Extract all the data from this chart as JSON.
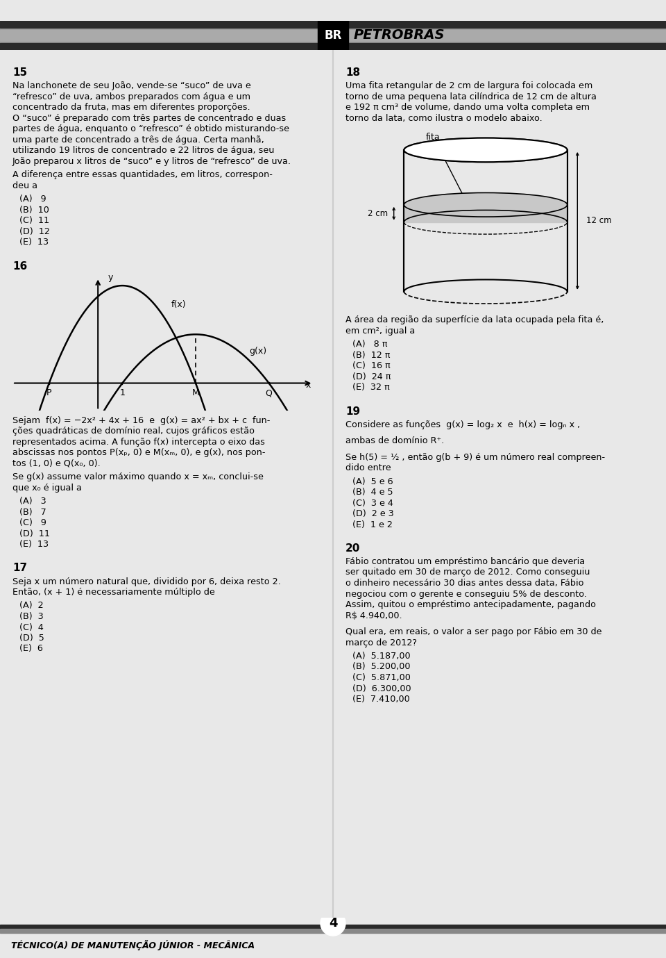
{
  "page_bg": "#e8e8e8",
  "content_bg": "#ffffff",
  "header_dark": "#2a2a2a",
  "header_mid": "#888888",
  "header_light": "#aaaaaa",
  "footer_text": "TÉCNICO(A) DE MANUTENÇÃO JÚNIOR - MECÂNICA",
  "footer_page": "4",
  "q15_title": "15",
  "q15_body": "Na lanchonete de seu João, vende-se “suco” de uva e\n“refresco” de uva, ambos preparados com água e um\nconcentrado da fruta, mas em diferentes proporções.\nO “suco” é preparado com três partes de concentrado e duas\npartes de água, enquanto o “refresco” é obtido misturando-se\numa parte de concentrado a três de água. Certa manhã,\nutilizando 19 litros de concentrado e 22 litros de água, seu\nJoão preparou x litros de “suco” e y litros de “refresco” de uva.",
  "q15_q": "A diferença entre essas quantidades, em litros, correspon-\ndeu a",
  "q15_opts": [
    "(A)   9",
    "(B)  10",
    "(C)  11",
    "(D)  12",
    "(E)  13"
  ],
  "q16_title": "16",
  "q16_sejam": "Sejam  f(x) = −2x² + 4x + 16  e  g(x) = ax² + bx + c  fun-\nções quadráticas de domínio real, cujos gráficos estão\nrepresentados acima. A função f(x) intercepta o eixo das\nabscissas nos pontos P(xₚ, 0) e M(xₘ, 0), e g(x), nos pon-\ntos (1, 0) e Q(x₀, 0).",
  "q16_q": "Se g(x) assume valor máximo quando x = xₘ, conclui-se\nque x₀ é igual a",
  "q16_opts": [
    "(A)   3",
    "(B)   7",
    "(C)   9",
    "(D)  11",
    "(E)  13"
  ],
  "q17_title": "17",
  "q17_body": "Seja x um número natural que, dividido por 6, deixa resto 2.\nEntão, (x + 1) é necessariamente múltiplo de",
  "q17_opts": [
    "(A)  2",
    "(B)  3",
    "(C)  4",
    "(D)  5",
    "(E)  6"
  ],
  "q18_title": "18",
  "q18_body": "Uma fita retangular de 2 cm de largura foi colocada em\ntorno de uma pequena lata cilíndrica de 12 cm de altura\ne 192 π cm³ de volume, dando uma volta completa em\ntorno da lata, como ilustra o modelo abaixo.",
  "q18_q": "A área da região da superfície da lata ocupada pela fita é,\nem cm², igual a",
  "q18_opts": [
    "(A)   8 π",
    "(B)  12 π",
    "(C)  16 π",
    "(D)  24 π",
    "(E)  32 π"
  ],
  "q19_title": "19",
  "q19_body1": "Considere as funções  g(x) = log₂ x  e  h(x) = logₙ x ,",
  "q19_body2": "ambas de domínio R⁺.",
  "q19_body3": "Se h(5) = ½ , então g(b + 9) é um número real compreen-\ndido entre",
  "q19_opts": [
    "(A)  5 e 6",
    "(B)  4 e 5",
    "(C)  3 e 4",
    "(D)  2 e 3",
    "(E)  1 e 2"
  ],
  "q20_title": "20",
  "q20_body": "Fábio contratou um empréstimo bancário que deveria\nser quitado em 30 de março de 2012. Como conseguiu\no dinheiro necessário 30 dias antes dessa data, Fábio\nnegociou com o gerente e conseguiu 5% de desconto.\nAssim, quitou o empréstimo antecipadamente, pagando\nR$ 4.940,00.",
  "q20_q": "Qual era, em reais, o valor a ser pago por Fábio em 30 de\nmarço de 2012?",
  "q20_opts": [
    "(A)  5.187,00",
    "(B)  5.200,00",
    "(C)  5.871,00",
    "(D)  6.300,00",
    "(E)  7.410,00"
  ]
}
